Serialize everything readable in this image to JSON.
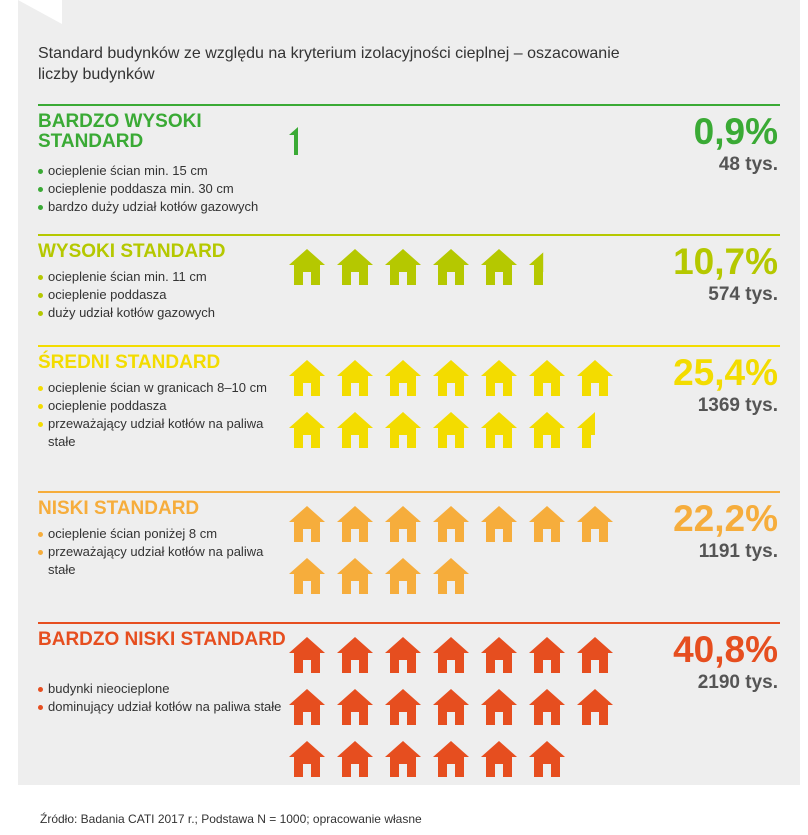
{
  "title": "Standard budynków ze względu na kryterium izolacyjności cieplnej – oszacowanie liczby budynków",
  "source": "Źródło: Badania CATI 2017 r.; Podstawa N = 1000; opracowanie własne",
  "chart_data": {
    "type": "pictogram",
    "unit_note": "",
    "categories": [
      {
        "name": "BARDZO WYSOKI STANDARD",
        "color": "#3aaa35",
        "bullets": [
          "ocieplenie ścian min. 15 cm",
          "ocieplenie poddasza min. 30 cm",
          "bardzo duży udział kotłów gazowych"
        ],
        "percent_label": "0,9%",
        "count_label": "48 tys.",
        "percent": 0.9,
        "count_thousands": 48,
        "icons": 0.2
      },
      {
        "name": "WYSOKI STANDARD",
        "color": "#b5c800",
        "bullets": [
          "ocieplenie ścian min. 11 cm",
          "ocieplenie poddasza",
          "duży udział kotłów gazowych"
        ],
        "percent_label": "10,7%",
        "count_label": "574 tys.",
        "percent": 10.7,
        "count_thousands": 574,
        "icons": 5.4
      },
      {
        "name": "ŚREDNI STANDARD",
        "color": "#f3dc00",
        "bullets": [
          "ocieplenie ścian w granicach 8–10 cm",
          "ocieplenie poddasza",
          "przeważający udział kotłów na paliwa stałe"
        ],
        "percent_label": "25,4%",
        "count_label": "1369 tys.",
        "percent": 25.4,
        "count_thousands": 1369,
        "icons": 13.5
      },
      {
        "name": "NISKI STANDARD",
        "color": "#f6ad3c",
        "bullets": [
          "ocieplenie ścian poniżej 8 cm",
          "przeważający udział kotłów na paliwa stałe"
        ],
        "percent_label": "22,2%",
        "count_label": "1191 tys.",
        "percent": 22.2,
        "count_thousands": 1191,
        "icons": 11
      },
      {
        "name": "BARDZO NISKI STANDARD",
        "color": "#e64e1f",
        "bullets": [
          "budynki nieocieplone",
          "dominujący udział kotłów na paliwa stałe"
        ],
        "percent_label": "40,8%",
        "count_label": "2190 tys.",
        "percent": 40.8,
        "count_thousands": 2190,
        "icons": 20
      }
    ]
  }
}
